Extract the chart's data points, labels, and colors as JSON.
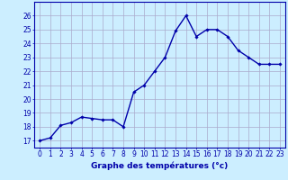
{
  "x": [
    0,
    1,
    2,
    3,
    4,
    5,
    6,
    7,
    8,
    9,
    10,
    11,
    12,
    13,
    14,
    15,
    16,
    17,
    18,
    19,
    20,
    21,
    22,
    23
  ],
  "y": [
    17.0,
    17.2,
    18.1,
    18.3,
    18.7,
    18.6,
    18.5,
    18.5,
    18.0,
    20.5,
    21.0,
    22.0,
    23.0,
    24.9,
    26.0,
    24.5,
    25.0,
    25.0,
    24.5,
    23.5,
    23.0,
    22.5,
    22.5,
    22.5
  ],
  "xlabel": "Graphe des températures (°c)",
  "ylim": [
    16.5,
    27.0
  ],
  "xlim": [
    -0.5,
    23.5
  ],
  "yticks": [
    17,
    18,
    19,
    20,
    21,
    22,
    23,
    24,
    25,
    26
  ],
  "xticks": [
    0,
    1,
    2,
    3,
    4,
    5,
    6,
    7,
    8,
    9,
    10,
    11,
    12,
    13,
    14,
    15,
    16,
    17,
    18,
    19,
    20,
    21,
    22,
    23
  ],
  "xtick_labels": [
    "0",
    "1",
    "2",
    "3",
    "4",
    "5",
    "6",
    "7",
    "8",
    "9",
    "10",
    "11",
    "12",
    "13",
    "14",
    "15",
    "16",
    "17",
    "18",
    "19",
    "20",
    "21",
    "22",
    "23"
  ],
  "line_color": "#0000aa",
  "marker": "D",
  "marker_size": 1.8,
  "bg_color": "#cceeff",
  "grid_color": "#aaaacc",
  "axis_color": "#0000aa",
  "label_color": "#0000aa",
  "xlabel_fontsize": 6.5,
  "tick_fontsize": 5.5,
  "line_width": 1.0
}
